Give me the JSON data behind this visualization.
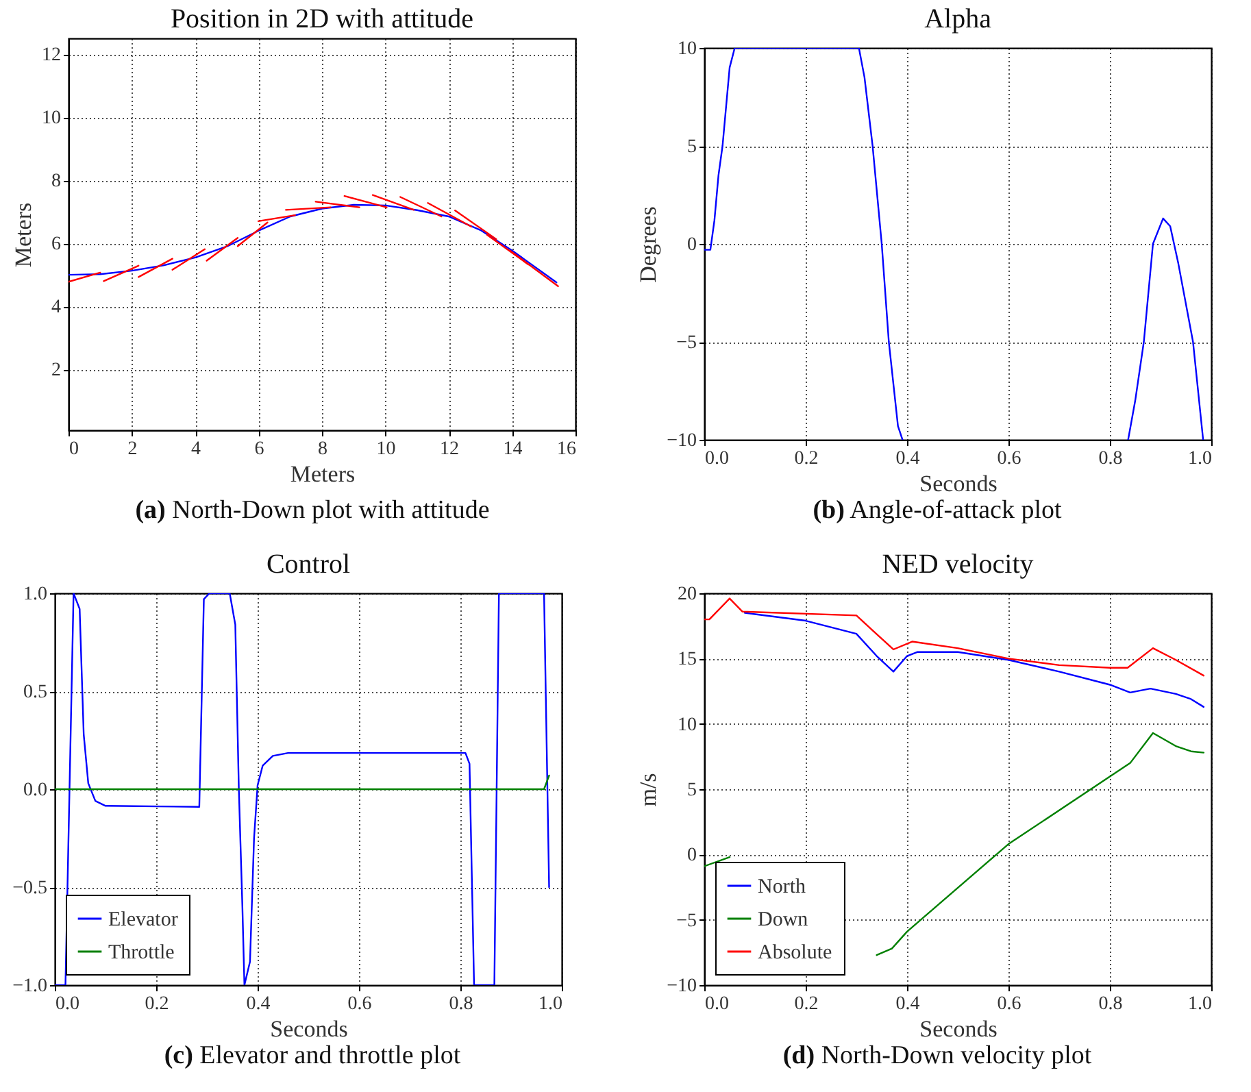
{
  "chart_data": [
    {
      "type": "line",
      "title": "Position in 2D with attitude",
      "xlabel": "Meters",
      "ylabel": "Meters",
      "xlim": [
        0,
        16
      ],
      "ylim": [
        0.07,
        12.5
      ],
      "xticks": [
        0,
        2,
        4,
        6,
        8,
        10,
        12,
        14,
        16
      ],
      "yticks": [
        2,
        4,
        6,
        8,
        10,
        12
      ],
      "grid": true,
      "marker": "none",
      "annotations": [
        "(a) North-Down plot with attitude"
      ],
      "series": [
        {
          "color": "#0000ff",
          "x": [
            0,
            1,
            2,
            3,
            4,
            5,
            6,
            7,
            8,
            9,
            10,
            11,
            12,
            13,
            14,
            15.4
          ],
          "values": [
            5.0,
            5.02,
            5.13,
            5.3,
            5.55,
            5.9,
            6.4,
            6.85,
            7.1,
            7.22,
            7.2,
            7.05,
            6.85,
            6.42,
            5.77,
            4.76
          ]
        },
        {
          "color": "#ff0000",
          "x": [
            0,
            1.0
          ],
          "values": [
            4.78,
            5.07
          ]
        },
        {
          "color": "#ff0000",
          "x": [
            1.11,
            2.21
          ],
          "values": [
            4.8,
            5.29
          ]
        },
        {
          "color": "#ff0000",
          "x": [
            2.21,
            3.28
          ],
          "values": [
            4.93,
            5.51
          ]
        },
        {
          "color": "#ff0000",
          "x": [
            3.28,
            4.3
          ],
          "values": [
            5.16,
            5.81
          ]
        },
        {
          "color": "#ff0000",
          "x": [
            4.36,
            5.34
          ],
          "values": [
            5.45,
            6.17
          ]
        },
        {
          "color": "#ff0000",
          "x": [
            5.34,
            6.28
          ],
          "values": [
            5.91,
            6.66
          ]
        },
        {
          "color": "#ff0000",
          "x": [
            5.99,
            7.15
          ],
          "values": [
            6.7,
            6.89
          ]
        },
        {
          "color": "#ff0000",
          "x": [
            6.86,
            8.27
          ],
          "values": [
            7.06,
            7.14
          ]
        },
        {
          "color": "#ff0000",
          "x": [
            7.8,
            9.18
          ],
          "values": [
            7.32,
            7.14
          ]
        },
        {
          "color": "#ff0000",
          "x": [
            8.71,
            10.04
          ],
          "values": [
            7.5,
            7.14
          ]
        },
        {
          "color": "#ff0000",
          "x": [
            9.6,
            10.9
          ],
          "values": [
            7.53,
            7.06
          ]
        },
        {
          "color": "#ff0000",
          "x": [
            10.47,
            11.77
          ],
          "values": [
            7.47,
            6.85
          ]
        },
        {
          "color": "#ff0000",
          "x": [
            11.34,
            12.71
          ],
          "values": [
            7.28,
            6.53
          ]
        },
        {
          "color": "#ff0000",
          "x": [
            12.2,
            13.5
          ],
          "values": [
            7.04,
            6.13
          ]
        },
        {
          "color": "#ff0000",
          "x": [
            13.21,
            14.51
          ],
          "values": [
            6.27,
            5.33
          ]
        },
        {
          "color": "#ff0000",
          "x": [
            13.93,
            15.45
          ],
          "values": [
            5.77,
            4.64
          ]
        }
      ]
    },
    {
      "type": "line",
      "title": "Alpha",
      "xlabel": "Seconds",
      "ylabel": "Degrees",
      "xlim": [
        0,
        1
      ],
      "ylim": [
        -10,
        10
      ],
      "xticks": [
        {
          "value": 0,
          "label": "0.0"
        },
        {
          "value": 0.2,
          "label": "0.2"
        },
        {
          "value": 0.4,
          "label": "0.4"
        },
        {
          "value": 0.6,
          "label": "0.6"
        },
        {
          "value": 0.8,
          "label": "0.8"
        },
        {
          "value": 1,
          "label": "1.0"
        }
      ],
      "yticks": [
        {
          "value": -10,
          "label": "−10"
        },
        {
          "value": -5,
          "label": "−5"
        },
        0,
        5,
        10
      ],
      "grid": true,
      "marker": "none",
      "annotations": [
        "(b) Angle-of-attack plot"
      ],
      "series": [
        {
          "color": "#0000ff",
          "x": [
            0,
            0.012,
            0.02,
            0.028,
            0.036,
            0.05,
            0.06,
            0.305,
            0.316,
            0.332,
            0.35,
            0.364,
            0.382,
            0.391,
            0.6,
            0.836,
            0.85,
            0.867,
            0.885,
            0.905,
            0.919,
            0.935,
            0.964,
            0.984
          ],
          "values": [
            -0.3,
            -0.3,
            1.2,
            3.5,
            5,
            9,
            10,
            10,
            8.5,
            5,
            0,
            -5,
            -9.3,
            -10,
            null,
            -10,
            -8,
            -5,
            0,
            1.3,
            0.9,
            -1,
            -5,
            -10
          ]
        }
      ]
    },
    {
      "type": "line",
      "title": "Control",
      "xlabel": "Seconds",
      "xlim": [
        0,
        1
      ],
      "ylim": [
        -1,
        1
      ],
      "xticks": [
        {
          "value": 0,
          "label": "0.0"
        },
        {
          "value": 0.2,
          "label": "0.2"
        },
        {
          "value": 0.4,
          "label": "0.4"
        },
        {
          "value": 0.6,
          "label": "0.6"
        },
        {
          "value": 0.8,
          "label": "0.8"
        },
        {
          "value": 1,
          "label": "1.0"
        }
      ],
      "yticks": [
        {
          "value": -1,
          "label": "−1.0"
        },
        {
          "value": -0.5,
          "label": "−0.5"
        },
        {
          "value": 0,
          "label": "0.0"
        },
        {
          "value": 0.5,
          "label": "0.5"
        },
        {
          "value": 1,
          "label": "1.0"
        }
      ],
      "grid": true,
      "marker": "none",
      "legend": "bottom left",
      "annotations": [
        "(c) Elevator and throttle plot"
      ],
      "series": [
        {
          "name": "Elevator",
          "color": "#0000ff",
          "x": [
            0,
            0.021,
            0.037,
            0.049,
            0.057,
            0.066,
            0.08,
            0.1,
            0.285,
            0.294,
            0.305,
            0.345,
            0.356,
            0.363,
            0.37,
            0.374,
            0.385,
            0.393,
            0.4,
            0.41,
            0.43,
            0.46,
            0.81,
            0.818,
            0.827,
            0.867,
            0.876,
            0.965,
            0.975
          ],
          "values": [
            -1,
            -1,
            1,
            0.92,
            0.28,
            0.03,
            -0.06,
            -0.085,
            -0.09,
            0.97,
            1,
            1,
            0.84,
            0,
            -0.6,
            -1,
            -0.88,
            -0.25,
            0.02,
            0.12,
            0.17,
            0.185,
            0.185,
            0.13,
            -1,
            -1,
            1,
            1,
            -0.5
          ]
        },
        {
          "name": "Throttle",
          "color": "#008000",
          "x": [
            0,
            0.965,
            0.975
          ],
          "values": [
            0,
            0,
            0.07
          ]
        }
      ]
    },
    {
      "type": "line",
      "title": "NED velocity",
      "xlabel": "Seconds",
      "ylabel": "m/s",
      "xlim": [
        0,
        1
      ],
      "ylim": [
        -10,
        20
      ],
      "xticks": [
        {
          "value": 0,
          "label": "0.0"
        },
        {
          "value": 0.2,
          "label": "0.2"
        },
        {
          "value": 0.4,
          "label": "0.4"
        },
        {
          "value": 0.6,
          "label": "0.6"
        },
        {
          "value": 0.8,
          "label": "0.8"
        },
        {
          "value": 1,
          "label": "1.0"
        }
      ],
      "yticks": [
        {
          "value": -10,
          "label": "−10"
        },
        {
          "value": -5,
          "label": "−5"
        },
        0,
        5,
        10,
        15,
        20
      ],
      "grid": true,
      "marker": "none",
      "legend": "bottom left",
      "annotations": [
        "(d) North-Down velocity plot"
      ],
      "series": [
        {
          "name": "North",
          "color": "#0000ff",
          "x": [
            0.08,
            0.1,
            0.2,
            0.3,
            0.34,
            0.373,
            0.4,
            0.42,
            0.5,
            0.6,
            0.7,
            0.8,
            0.84,
            0.88,
            0.93,
            0.96,
            0.985
          ],
          "values": [
            18.5,
            18.4,
            17.9,
            16.9,
            15.2,
            14.0,
            15.2,
            15.5,
            15.5,
            14.9,
            14.0,
            13.0,
            12.4,
            12.7,
            12.3,
            11.9,
            11.3
          ]
        },
        {
          "name": "Down",
          "color": "#008000",
          "x": [
            0,
            0.05,
            0.07,
            0.2,
            0.34,
            0.37,
            0.4,
            0.6,
            0.84,
            0.885,
            0.93,
            0.96,
            0.985
          ],
          "values": [
            -0.9,
            -0.2,
            null,
            null,
            -7.7,
            -7.2,
            -5.9,
            0.8,
            7.0,
            9.3,
            8.3,
            7.9,
            7.8
          ]
        },
        {
          "name": "Absolute",
          "color": "#ff0000",
          "x": [
            0,
            0.01,
            0.05,
            0.075,
            0.3,
            0.373,
            0.41,
            0.5,
            0.6,
            0.7,
            0.8,
            0.835,
            0.885,
            0.93,
            0.985
          ],
          "values": [
            18,
            18,
            19.6,
            18.6,
            18.3,
            15.7,
            16.3,
            15.8,
            15.0,
            14.5,
            14.3,
            14.3,
            15.8,
            14.9,
            13.7
          ]
        }
      ]
    }
  ]
}
